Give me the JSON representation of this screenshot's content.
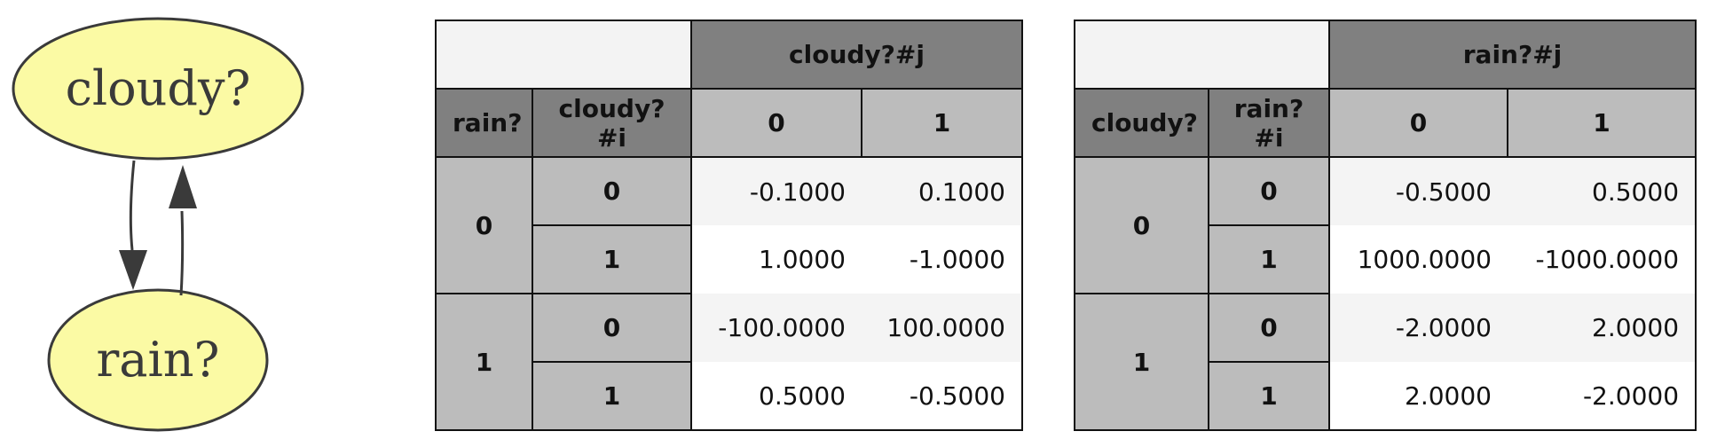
{
  "graph": {
    "nodes": [
      {
        "id": "cloudy",
        "label": "cloudy?"
      },
      {
        "id": "rain",
        "label": "rain?"
      }
    ],
    "edges": [
      {
        "from": "cloudy?",
        "to": "rain?"
      },
      {
        "from": "rain?",
        "to": "cloudy?"
      }
    ],
    "node_fill": "#fbfaa4",
    "node_stroke": "#3a3a3a",
    "edge_color": "#3a3a3a"
  },
  "tables": [
    {
      "col_var": "cloudy?#j",
      "row_var_outer": "rain?",
      "row_var_inner": "cloudy?#i",
      "col_values": [
        "0",
        "1"
      ],
      "rows": [
        {
          "outer": "0",
          "inner": "0",
          "values": [
            "-0.1000",
            "0.1000"
          ]
        },
        {
          "outer": "",
          "inner": "1",
          "values": [
            "1.0000",
            "-1.0000"
          ]
        },
        {
          "outer": "1",
          "inner": "0",
          "values": [
            "-100.0000",
            "100.0000"
          ]
        },
        {
          "outer": "",
          "inner": "1",
          "values": [
            "0.5000",
            "-0.5000"
          ]
        }
      ]
    },
    {
      "col_var": "rain?#j",
      "row_var_outer": "cloudy?",
      "row_var_inner": "rain?#i",
      "col_values": [
        "0",
        "1"
      ],
      "rows": [
        {
          "outer": "0",
          "inner": "0",
          "values": [
            "-0.5000",
            "0.5000"
          ]
        },
        {
          "outer": "",
          "inner": "1",
          "values": [
            "1000.0000",
            "-1000.0000"
          ]
        },
        {
          "outer": "1",
          "inner": "0",
          "values": [
            "-2.0000",
            "2.0000"
          ]
        },
        {
          "outer": "",
          "inner": "1",
          "values": [
            "2.0000",
            "-2.0000"
          ]
        }
      ]
    }
  ],
  "colors": {
    "header_dark": "#808080",
    "header_light": "#bcbcbc",
    "corner": "#f3f3f3",
    "row_shade": "#f4f4f4"
  }
}
